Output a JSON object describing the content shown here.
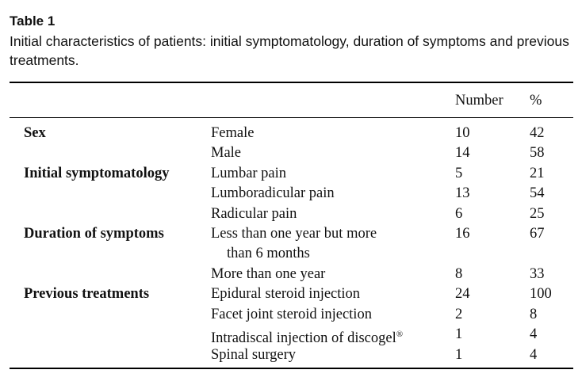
{
  "caption": {
    "label": "Table 1",
    "text": "Initial characteristics of patients: initial symptomatology, duration of symptoms and previous treatments."
  },
  "header": {
    "number": "Number",
    "percent": "%"
  },
  "groups": {
    "sex": "Sex",
    "symptomatology": "Initial symptomatology",
    "duration": "Duration of symptoms",
    "treatments": "Previous treatments"
  },
  "rows": [
    {
      "item": "Female",
      "number": "10",
      "percent": "42"
    },
    {
      "item": "Male",
      "number": "14",
      "percent": "58"
    },
    {
      "item": "Lumbar pain",
      "number": "5",
      "percent": "21"
    },
    {
      "item": "Lumboradicular pain",
      "number": "13",
      "percent": "54"
    },
    {
      "item": "Radicular pain",
      "number": "6",
      "percent": "25"
    },
    {
      "item": "Less than one year but more",
      "item_cont": "than 6 months",
      "number": "16",
      "percent": "67"
    },
    {
      "item": "More than one year",
      "number": "8",
      "percent": "33"
    },
    {
      "item": "Epidural steroid injection",
      "number": "24",
      "percent": "100"
    },
    {
      "item": "Facet joint steroid injection",
      "number": "2",
      "percent": "8"
    },
    {
      "item": "Intradiscal injection of discogel",
      "item_sup": "®",
      "number": "1",
      "percent": "4"
    },
    {
      "item": "Spinal surgery",
      "number": "1",
      "percent": "4"
    }
  ]
}
